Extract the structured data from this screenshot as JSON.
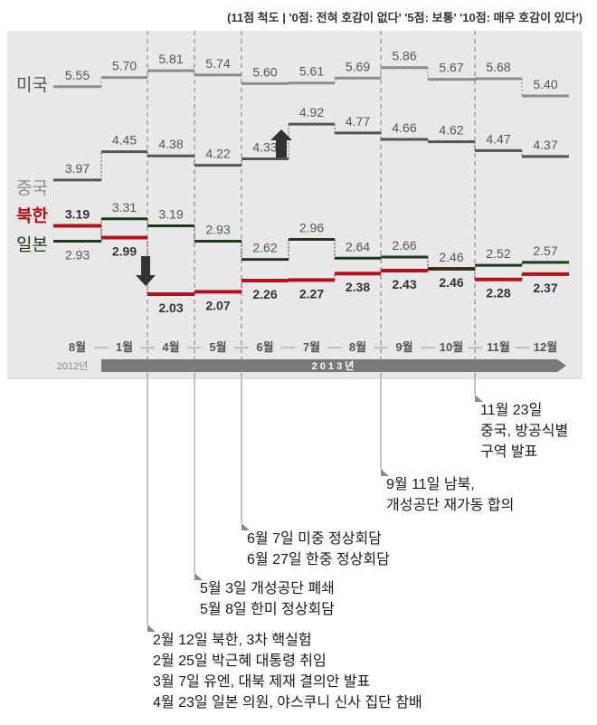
{
  "header_note": "(11점 척도 | '0점: 전혀 호감이 없다' '5점: 보통' '10점: 매우 호감이 있다')",
  "chart_data": {
    "type": "line",
    "style": "step",
    "scale_note": "(11점 척도 | '0점: 전혀 호감이 없다' '5점: 보통' '10점: 매우 호감이 있다')",
    "categories": [
      "8월",
      "1월",
      "4월",
      "5월",
      "6월",
      "7월",
      "8월",
      "9월",
      "10월",
      "11월",
      "12월"
    ],
    "year_labels": {
      "2012": "2012년",
      "2013": "2 0 1 3 년"
    },
    "series": [
      {
        "name": "미국",
        "values": [
          5.55,
          5.7,
          5.81,
          5.74,
          5.6,
          5.61,
          5.69,
          5.86,
          5.67,
          5.68,
          5.4
        ],
        "color": "#8c8c8c",
        "label_color": "#555555",
        "bold": false
      },
      {
        "name": "중국",
        "values": [
          3.97,
          4.45,
          4.38,
          4.22,
          4.33,
          4.92,
          4.77,
          4.66,
          4.62,
          4.47,
          4.37
        ],
        "color": "#555555",
        "label_color": "#8c8c8c",
        "bold": false
      },
      {
        "name": "북한",
        "values": [
          3.19,
          2.99,
          2.03,
          2.07,
          2.26,
          2.27,
          2.38,
          2.43,
          2.46,
          2.28,
          2.37
        ],
        "color": "#b3121b",
        "label_color": "#b3121b",
        "bold": true
      },
      {
        "name": "일본",
        "values": [
          2.93,
          3.31,
          3.19,
          2.93,
          2.62,
          2.96,
          2.64,
          2.66,
          2.46,
          2.52,
          2.57
        ],
        "color": "#1f3a17",
        "label_color": "#1f3a17",
        "bold": false
      }
    ],
    "annotations": [
      {
        "after_index": 1,
        "lines": [
          "2월 12일  북한, 3차 핵실험",
          "2월 25일  박근혜 대통령 취임",
          "3월   7일  유엔, 대북 제재 결의안 발표",
          "4월 23일  일본 의원, 야스쿠니 신사 집단 참배"
        ]
      },
      {
        "after_index": 2,
        "lines": [
          "5월 3일   개성공단 폐쇄",
          "5월 8일   한미 정상회담"
        ]
      },
      {
        "after_index": 3,
        "lines": [
          "6월 7일 미중 정상회담",
          "6월 27일 한중 정상회담"
        ]
      },
      {
        "after_index": 6,
        "lines": [
          "9월 11일 남북,",
          "개성공단 재가동 합의"
        ]
      },
      {
        "after_index": 8,
        "lines": [
          "11월 23일",
          "중국, 방공식별",
          "구역 발표"
        ]
      }
    ],
    "arrows": [
      {
        "series": "북한",
        "at_index": 2,
        "direction": "down"
      },
      {
        "series": "중국",
        "at_index": 5,
        "direction": "up"
      }
    ]
  }
}
